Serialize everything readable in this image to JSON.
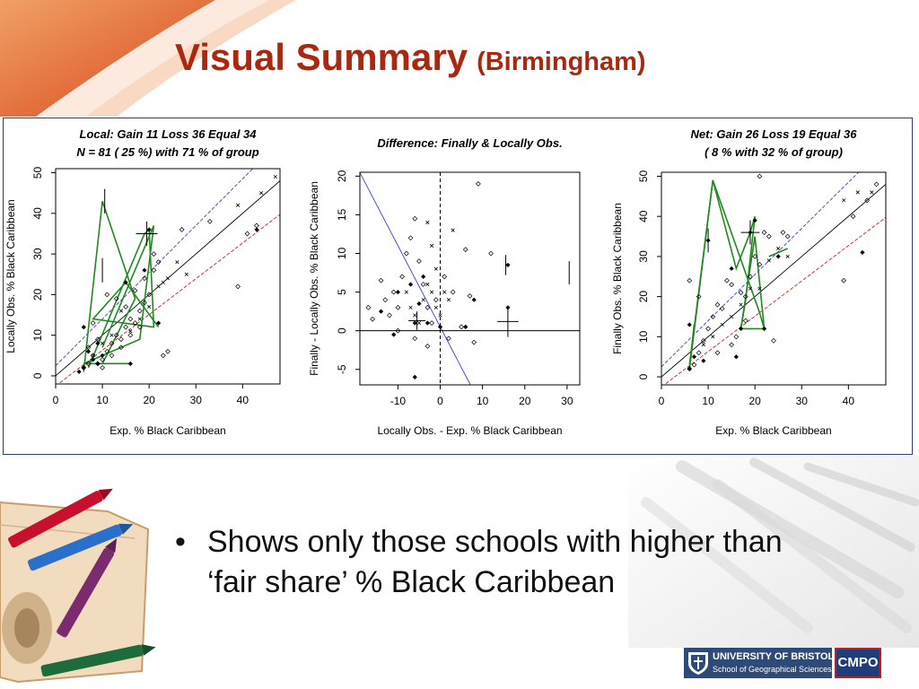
{
  "slide": {
    "title_main": "Visual Summary",
    "title_sub": "(Birmingham)",
    "bullet": "Shows only those schools with higher than ‘fair share’ % Black Caribbean",
    "colors": {
      "title": "#a8290f",
      "accent_orange": "#e2581c",
      "panel_border": "#2a3b7a"
    },
    "images": [
      "crayons-book-illustration",
      "crayons-and-pencils-background"
    ]
  },
  "logo": {
    "university": "UNIVERSITY OF BRISTOL",
    "school": "School of Geographical Sciences",
    "cmpo": "CMPO",
    "crest_icon": "crest-icon"
  },
  "chart_data": [
    {
      "type": "scatter",
      "title_lines": [
        "Local: Gain 11 Loss 36 Equal 34",
        "N = 81 ( 25 %) with  71 % of group"
      ],
      "xlabel": "Exp. % Black Caribbean",
      "ylabel": "Locally Obs. % Black Caribbean",
      "xlim": [
        0,
        48
      ],
      "ylim": [
        -2,
        51
      ],
      "xticks": [
        0,
        10,
        20,
        30,
        40
      ],
      "yticks": [
        0,
        10,
        20,
        30,
        40,
        50
      ],
      "reference_lines": [
        {
          "name": "equal",
          "slope": 1,
          "intercept": 0,
          "color": "#000000",
          "dash": false
        },
        {
          "name": "upper",
          "slope": 1.15,
          "intercept": 2.5,
          "color": "#3344cc",
          "dash": true
        },
        {
          "name": "lower",
          "slope": 0.88,
          "intercept": -2.5,
          "color": "#cc2222",
          "dash": true
        }
      ],
      "points_open": [
        [
          6,
          2
        ],
        [
          7,
          3
        ],
        [
          8,
          5
        ],
        [
          9,
          3
        ],
        [
          10,
          4
        ],
        [
          11,
          6
        ],
        [
          12,
          8
        ],
        [
          13,
          10
        ],
        [
          14,
          9
        ],
        [
          15,
          12
        ],
        [
          16,
          14
        ],
        [
          17,
          13
        ],
        [
          18,
          16
        ],
        [
          19,
          18
        ],
        [
          20,
          20
        ],
        [
          21,
          26
        ],
        [
          22,
          28
        ],
        [
          23,
          5
        ],
        [
          27,
          36
        ],
        [
          33,
          38
        ],
        [
          39,
          22
        ],
        [
          41,
          35
        ],
        [
          43,
          37
        ],
        [
          7,
          7
        ],
        [
          9,
          9
        ],
        [
          11,
          20
        ],
        [
          13,
          19
        ],
        [
          15,
          17
        ],
        [
          17,
          21
        ],
        [
          19,
          24
        ],
        [
          21,
          30
        ],
        [
          24,
          6
        ],
        [
          10,
          2
        ],
        [
          12,
          5
        ],
        [
          14,
          7
        ],
        [
          16,
          10
        ],
        [
          18,
          12
        ],
        [
          8,
          13
        ]
      ],
      "points_cross": [
        [
          8,
          5
        ],
        [
          10,
          8
        ],
        [
          12,
          10
        ],
        [
          14,
          16
        ],
        [
          16,
          11
        ],
        [
          18,
          14
        ],
        [
          20,
          17
        ],
        [
          22,
          22
        ],
        [
          24,
          24
        ],
        [
          26,
          28
        ],
        [
          28,
          25
        ],
        [
          39,
          42
        ],
        [
          44,
          45
        ],
        [
          47,
          49
        ],
        [
          23,
          23
        ]
      ],
      "points_filled": [
        [
          5,
          1
        ],
        [
          6,
          2
        ],
        [
          6,
          12
        ],
        [
          7,
          6
        ],
        [
          8,
          4
        ],
        [
          9,
          3
        ],
        [
          9,
          8
        ],
        [
          15,
          23
        ],
        [
          19,
          26
        ],
        [
          20,
          36
        ],
        [
          22,
          13
        ],
        [
          43,
          36
        ],
        [
          10,
          5
        ],
        [
          16,
          3
        ]
      ],
      "green_paths": [
        [
          [
            6,
            1
          ],
          [
            10,
            43
          ],
          [
            17,
            19
          ],
          [
            10,
            3
          ],
          [
            6,
            3
          ],
          [
            16,
            3
          ]
        ],
        [
          [
            7,
            2
          ],
          [
            19,
            35
          ],
          [
            20,
            36
          ],
          [
            21,
            12
          ],
          [
            8,
            14
          ],
          [
            15,
            23
          ],
          [
            22,
            12
          ]
        ],
        [
          [
            6,
            3
          ],
          [
            18,
            9
          ],
          [
            21,
            37
          ],
          [
            10,
            7
          ]
        ]
      ],
      "error_bars": [
        {
          "x": 10,
          "y": 26,
          "xerr": 0,
          "yerr": 3
        },
        {
          "x": 10.5,
          "y": 43,
          "xerr": 0,
          "yerr": 3
        },
        {
          "x": 19.5,
          "y": 35,
          "xerr": 2.3,
          "yerr": 3
        }
      ]
    },
    {
      "type": "scatter",
      "title_lines": [
        "Difference: Finally & Locally Obs."
      ],
      "xlabel": "Locally Obs. - Exp. % Black Caribbean",
      "ylabel": "Finally - Locally Obs. % Black Caribbean",
      "xlim": [
        -19,
        33
      ],
      "ylim": [
        -7,
        20.5
      ],
      "xticks": [
        -10,
        0,
        10,
        20,
        30
      ],
      "yticks": [
        -5,
        0,
        5,
        10,
        15,
        20
      ],
      "hline": 0,
      "vline": 0,
      "reference_lines": [
        {
          "name": "regression",
          "slope": -1.05,
          "intercept": 0.5,
          "color": "#3344cc",
          "dash": false
        }
      ],
      "points_open": [
        [
          -17,
          3
        ],
        [
          -16,
          1.5
        ],
        [
          -14,
          6.5
        ],
        [
          -13,
          4
        ],
        [
          -12,
          2
        ],
        [
          -11,
          5
        ],
        [
          -10,
          3
        ],
        [
          -9,
          7
        ],
        [
          -8,
          10
        ],
        [
          -7,
          12
        ],
        [
          -6,
          14.5
        ],
        [
          -5,
          9
        ],
        [
          -4,
          6
        ],
        [
          -3,
          3
        ],
        [
          -2,
          1
        ],
        [
          -1,
          4
        ],
        [
          1,
          7
        ],
        [
          3,
          5
        ],
        [
          6,
          10.5
        ],
        [
          7,
          4.5
        ],
        [
          9,
          19
        ],
        [
          12,
          10
        ],
        [
          -6,
          -1
        ],
        [
          -3,
          -2
        ],
        [
          -10,
          0
        ],
        [
          5,
          0.5
        ],
        [
          8,
          -1.5
        ],
        [
          2,
          -1
        ]
      ],
      "points_cross": [
        [
          -8,
          5
        ],
        [
          -7,
          3
        ],
        [
          -6,
          2
        ],
        [
          -5,
          1
        ],
        [
          -4,
          4
        ],
        [
          -3,
          6
        ],
        [
          -2,
          5
        ],
        [
          -1,
          3
        ],
        [
          0,
          2
        ],
        [
          1,
          5
        ],
        [
          2,
          4
        ],
        [
          3,
          13
        ],
        [
          -3,
          14
        ],
        [
          -2,
          11
        ],
        [
          -1,
          8
        ]
      ],
      "points_filled": [
        [
          -6,
          -6
        ],
        [
          -11,
          -0.5
        ],
        [
          -14,
          2.5
        ],
        [
          -10,
          5
        ],
        [
          -7,
          6
        ],
        [
          -4,
          7
        ],
        [
          -5,
          3.5
        ],
        [
          -6,
          1
        ],
        [
          -3,
          1
        ],
        [
          0,
          0.5
        ],
        [
          6,
          0.5
        ],
        [
          8,
          4
        ],
        [
          16,
          3
        ],
        [
          16,
          8.5
        ]
      ],
      "error_bars": [
        {
          "x": -5.5,
          "y": 1.3,
          "xerr": 2,
          "yerr": 1.2
        },
        {
          "x": 15.5,
          "y": 8.5,
          "xerr": 0,
          "yerr": 1.3
        },
        {
          "x": 16,
          "y": 1.2,
          "xerr": 2.5,
          "yerr": 2
        },
        {
          "x": 30.5,
          "y": 7.5,
          "xerr": 0,
          "yerr": 1.5
        }
      ]
    },
    {
      "type": "scatter",
      "title_lines": [
        "Net: Gain 26 Loss 19 Equal 36",
        "( 8 % with 32 % of group)"
      ],
      "xlabel": "Exp. % Black Caribbean",
      "ylabel": "Finally Obs. % Black Caribbean",
      "xlim": [
        0,
        48
      ],
      "ylim": [
        -2,
        51
      ],
      "xticks": [
        0,
        10,
        20,
        30,
        40
      ],
      "yticks": [
        0,
        10,
        20,
        30,
        40,
        50
      ],
      "reference_lines": [
        {
          "name": "equal",
          "slope": 1,
          "intercept": 0,
          "color": "#000000",
          "dash": false
        },
        {
          "name": "upper",
          "slope": 1.15,
          "intercept": 2.5,
          "color": "#3344cc",
          "dash": true
        },
        {
          "name": "lower",
          "slope": 0.88,
          "intercept": -2.5,
          "color": "#cc2222",
          "dash": true
        }
      ],
      "points_open": [
        [
          6,
          2
        ],
        [
          6,
          24
        ],
        [
          7,
          3
        ],
        [
          8,
          6
        ],
        [
          9,
          9
        ],
        [
          10,
          12
        ],
        [
          11,
          15
        ],
        [
          12,
          18
        ],
        [
          13,
          17
        ],
        [
          14,
          24
        ],
        [
          15,
          23
        ],
        [
          16,
          10
        ],
        [
          17,
          21
        ],
        [
          18,
          20
        ],
        [
          19,
          25
        ],
        [
          20,
          30
        ],
        [
          21,
          28
        ],
        [
          22,
          36
        ],
        [
          23,
          35
        ],
        [
          24,
          9
        ],
        [
          26,
          36
        ],
        [
          27,
          35
        ],
        [
          39,
          24
        ],
        [
          41,
          40
        ],
        [
          44,
          44
        ],
        [
          46,
          48
        ],
        [
          21,
          50
        ],
        [
          12,
          6
        ],
        [
          15,
          8
        ],
        [
          18,
          14
        ],
        [
          8,
          20
        ]
      ],
      "points_cross": [
        [
          9,
          8
        ],
        [
          11,
          10
        ],
        [
          13,
          13
        ],
        [
          15,
          15
        ],
        [
          17,
          18
        ],
        [
          19,
          22
        ],
        [
          21,
          22
        ],
        [
          23,
          29
        ],
        [
          25,
          32
        ],
        [
          27,
          30
        ],
        [
          39,
          44
        ],
        [
          42,
          46
        ],
        [
          45,
          46
        ]
      ],
      "points_filled": [
        [
          6,
          13
        ],
        [
          7,
          5
        ],
        [
          9,
          4
        ],
        [
          10,
          34
        ],
        [
          15,
          27
        ],
        [
          16,
          5
        ],
        [
          19,
          36
        ],
        [
          20,
          39
        ],
        [
          22,
          12
        ],
        [
          25,
          30
        ],
        [
          43,
          31
        ],
        [
          6,
          2
        ],
        [
          17,
          12
        ]
      ],
      "green_paths": [
        [
          [
            6,
            2
          ],
          [
            11,
            49
          ],
          [
            16,
            27
          ],
          [
            19,
            36
          ],
          [
            20,
            40
          ],
          [
            18,
            19
          ],
          [
            17,
            12
          ],
          [
            22,
            12
          ]
        ],
        [
          [
            6,
            3
          ],
          [
            11,
            49
          ],
          [
            21,
            16
          ],
          [
            22,
            12
          ],
          [
            20,
            35
          ],
          [
            17,
            12
          ]
        ],
        [
          [
            7,
            13
          ],
          [
            6,
            2
          ]
        ],
        [
          [
            23,
            30
          ],
          [
            27,
            32
          ]
        ]
      ],
      "error_bars": [
        {
          "x": 10,
          "y": 34,
          "xerr": 0,
          "yerr": 3
        },
        {
          "x": 19,
          "y": 36,
          "xerr": 2,
          "yerr": 3
        }
      ]
    }
  ]
}
